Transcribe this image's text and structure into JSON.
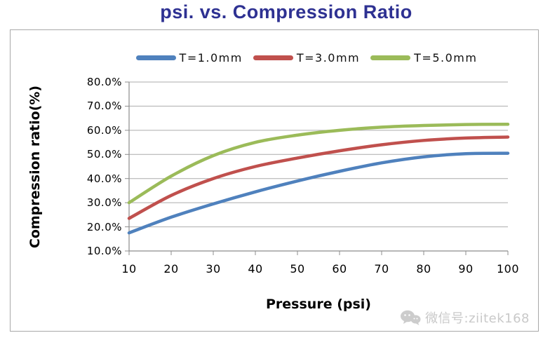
{
  "page": {
    "title_color": "#2E3192"
  },
  "watermark": {
    "icon": "wechat-icon",
    "icon_color": "#cccccc",
    "text": "微信号:ziitek168"
  },
  "chart_data": {
    "type": "line",
    "title": "psi. vs. Compression Ratio",
    "xlabel": "Pressure (psi)",
    "ylabel": "Compression ratio(%)",
    "x": [
      10,
      20,
      30,
      40,
      50,
      60,
      70,
      80,
      90,
      100
    ],
    "xticks": [
      "10",
      "20",
      "30",
      "40",
      "50",
      "60",
      "70",
      "80",
      "90",
      "100"
    ],
    "yticks": [
      "80.0%",
      "70.0%",
      "60.0%",
      "50.0%",
      "40.0%",
      "30.0%",
      "20.0%",
      "10.0%"
    ],
    "ytick_values": [
      80,
      70,
      60,
      50,
      40,
      30,
      20,
      10
    ],
    "ylim": [
      10,
      80
    ],
    "xlim": [
      10,
      100
    ],
    "grid": true,
    "legend_position": "top",
    "gridline_color": "#ababab",
    "axis_color": "#8c8c8c",
    "series": [
      {
        "name": "T=1.0mm",
        "color": "#4F81BD",
        "values": [
          17.5,
          24.0,
          29.5,
          34.5,
          39.0,
          43.0,
          46.5,
          49.0,
          50.3,
          50.5
        ]
      },
      {
        "name": "T=3.0mm",
        "color": "#C0504D",
        "values": [
          23.5,
          33.0,
          40.0,
          45.0,
          48.5,
          51.5,
          54.0,
          55.8,
          56.8,
          57.2
        ]
      },
      {
        "name": "T=5.0mm",
        "color": "#9BBB59",
        "values": [
          30.0,
          41.0,
          49.5,
          55.0,
          58.0,
          60.0,
          61.3,
          62.0,
          62.4,
          62.5
        ]
      }
    ]
  }
}
